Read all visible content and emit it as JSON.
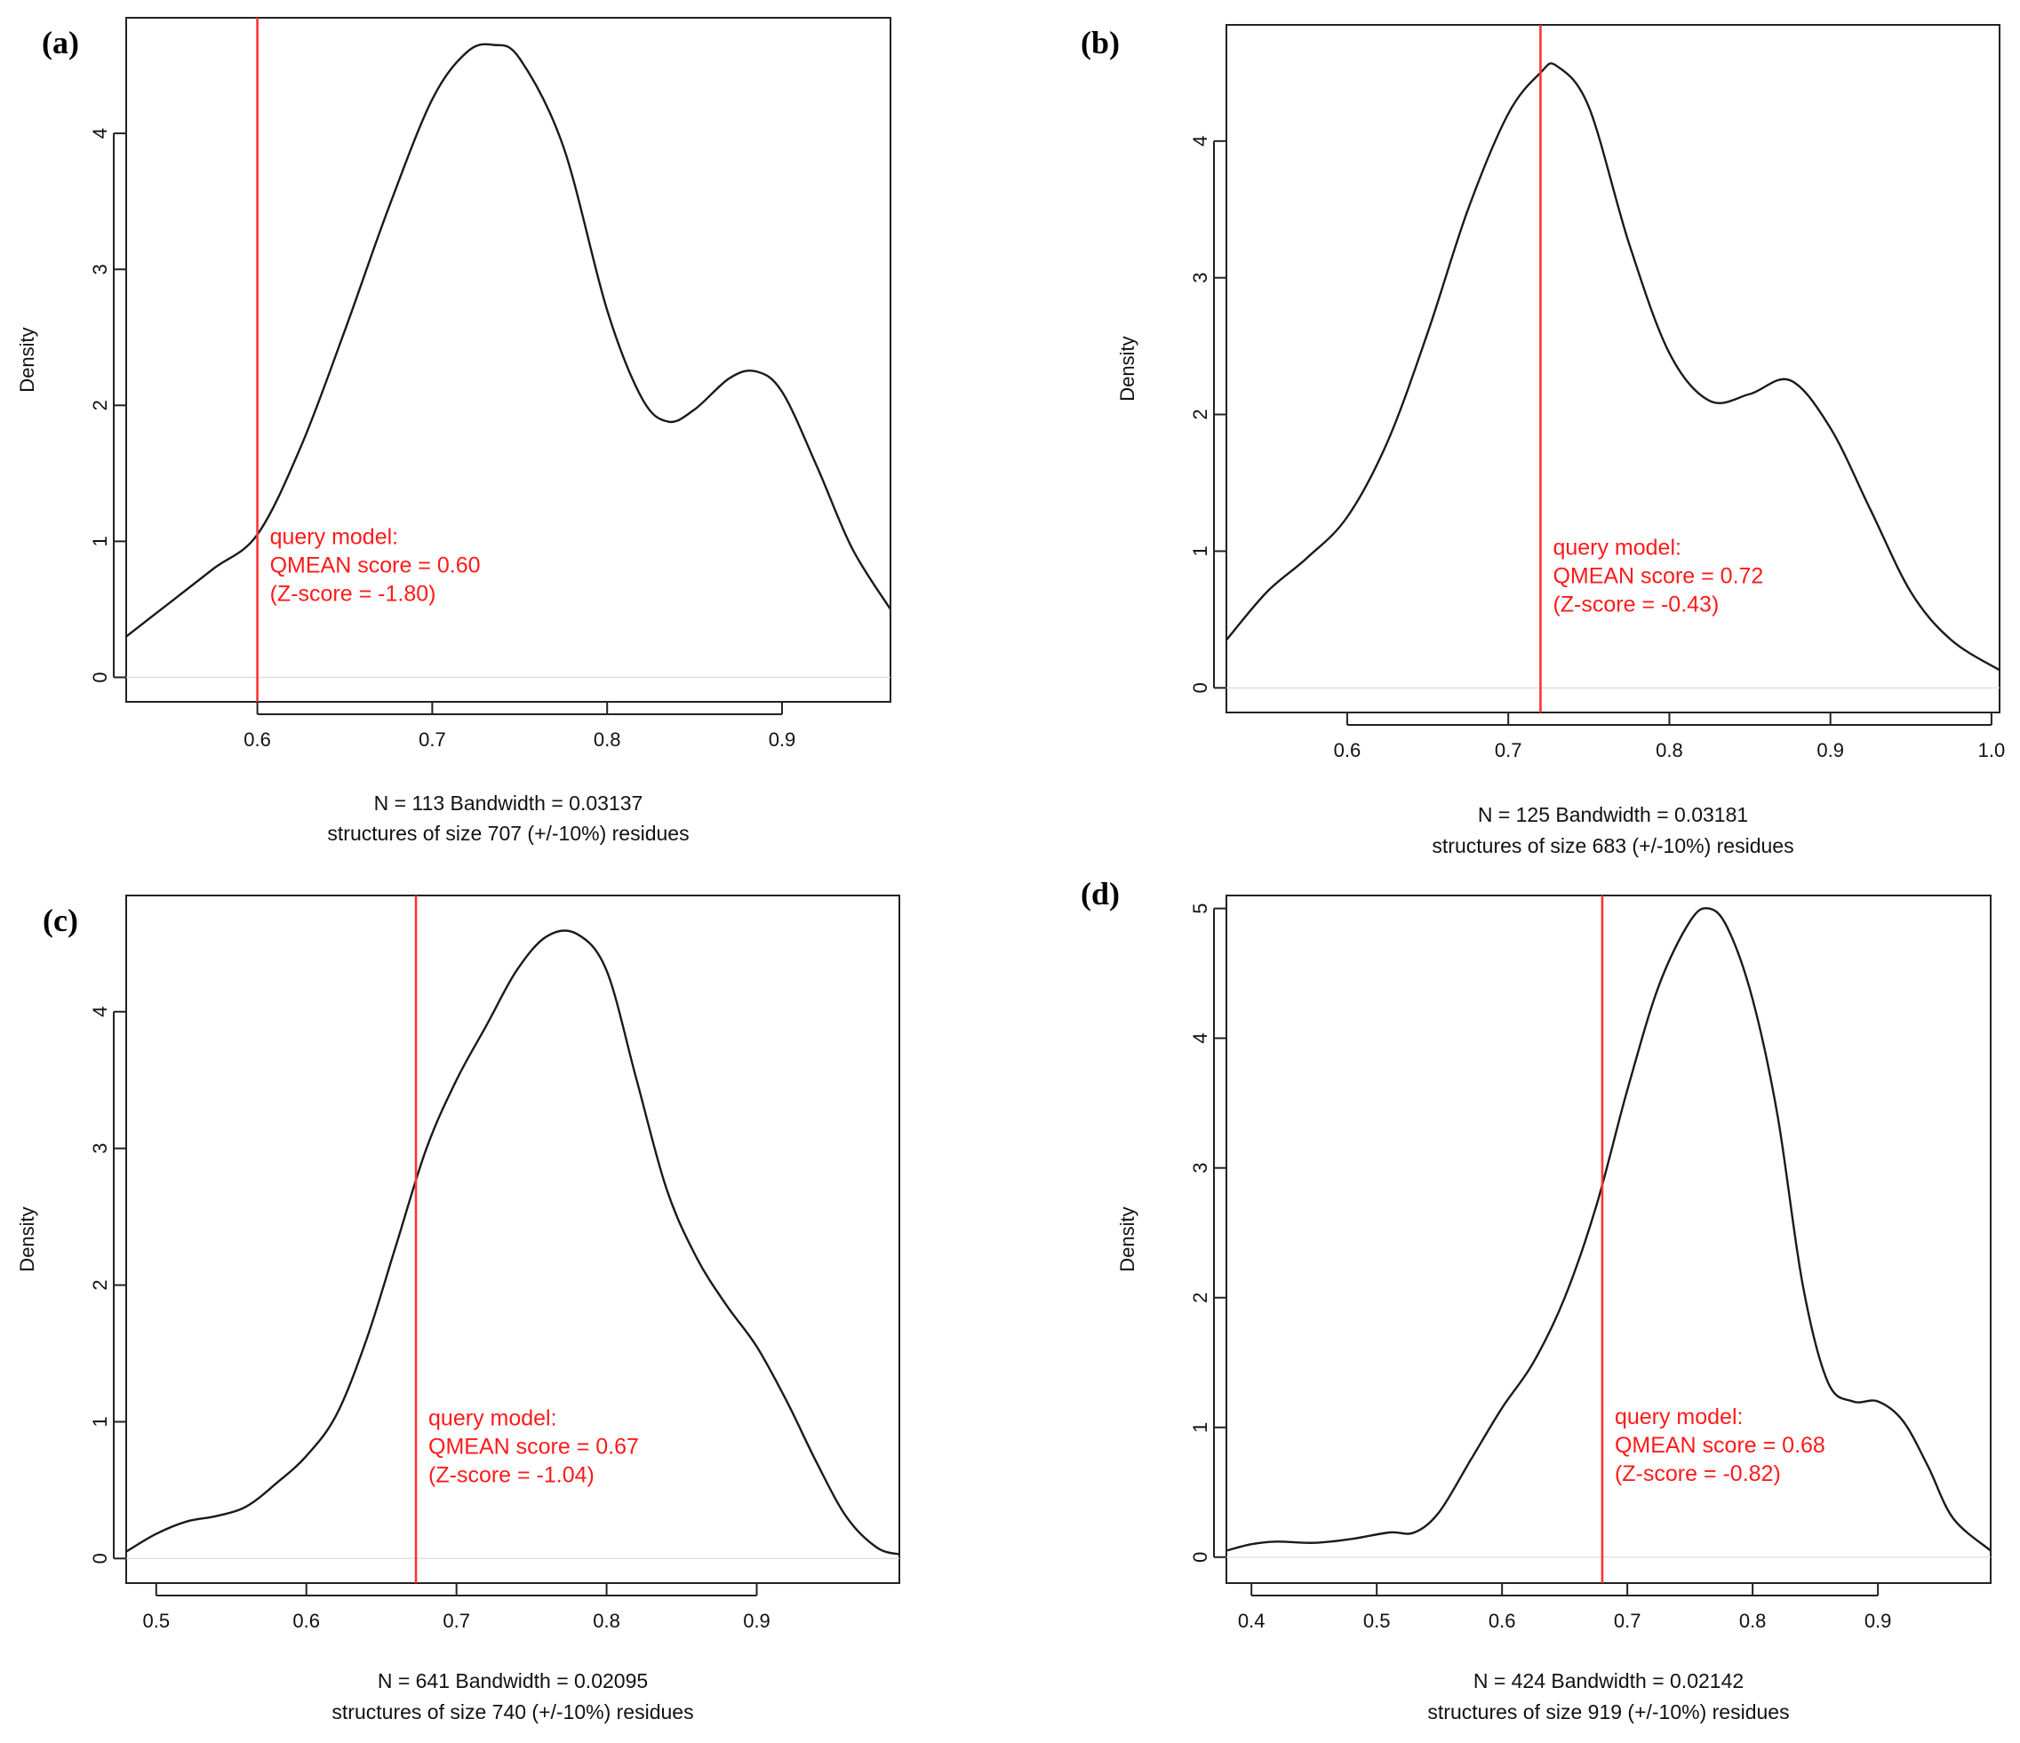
{
  "chart_data": [
    {
      "type": "line",
      "panel": "(a)",
      "ylabel": "Density",
      "xlim": [
        0.525,
        0.962
      ],
      "ylim": [
        -0.18,
        4.85
      ],
      "xticks": [
        "0.6",
        "0.7",
        "0.8",
        "0.9"
      ],
      "yticks": [
        "0",
        "1",
        "2",
        "3",
        "4"
      ],
      "sublabel_1": "N = 113   Bandwidth = 0.03137",
      "sublabel_2": "structures of size 707 (+/-10%) residues",
      "query_x": 0.6,
      "annotation": [
        "query model:",
        "QMEAN score = 0.60",
        "(Z-score = -1.80)"
      ],
      "series": [
        {
          "x": [
            0.525,
            0.55,
            0.575,
            0.6,
            0.625,
            0.65,
            0.675,
            0.7,
            0.72,
            0.735,
            0.75,
            0.775,
            0.8,
            0.82,
            0.835,
            0.85,
            0.87,
            0.885,
            0.9,
            0.92,
            0.94,
            0.962
          ],
          "y": [
            0.3,
            0.55,
            0.8,
            1.05,
            1.7,
            2.55,
            3.45,
            4.25,
            4.6,
            4.65,
            4.55,
            3.9,
            2.7,
            2.05,
            1.88,
            1.97,
            2.2,
            2.25,
            2.1,
            1.55,
            0.95,
            0.5
          ]
        }
      ]
    },
    {
      "type": "line",
      "panel": "(b)",
      "ylabel": "Density",
      "xlim": [
        0.525,
        1.005
      ],
      "ylim": [
        -0.18,
        4.85
      ],
      "xticks": [
        "0.6",
        "0.7",
        "0.8",
        "0.9",
        "1.0"
      ],
      "yticks": [
        "0",
        "1",
        "2",
        "3",
        "4"
      ],
      "sublabel_1": "N = 125   Bandwidth = 0.03181",
      "sublabel_2": "structures of size 683 (+/-10%) residues",
      "query_x": 0.72,
      "annotation": [
        "query model:",
        "QMEAN score = 0.72",
        "(Z-score = -0.43)"
      ],
      "series": [
        {
          "x": [
            0.525,
            0.55,
            0.575,
            0.6,
            0.625,
            0.65,
            0.675,
            0.7,
            0.72,
            0.73,
            0.75,
            0.775,
            0.8,
            0.825,
            0.85,
            0.875,
            0.9,
            0.925,
            0.95,
            0.975,
            1.005
          ],
          "y": [
            0.35,
            0.7,
            0.95,
            1.25,
            1.8,
            2.6,
            3.5,
            4.2,
            4.5,
            4.55,
            4.25,
            3.25,
            2.45,
            2.1,
            2.15,
            2.25,
            1.9,
            1.3,
            0.7,
            0.35,
            0.13
          ]
        }
      ]
    },
    {
      "type": "line",
      "panel": "(c)",
      "ylabel": "Density",
      "xlim": [
        0.48,
        0.995
      ],
      "ylim": [
        -0.18,
        4.85
      ],
      "xticks": [
        "0.5",
        "0.6",
        "0.7",
        "0.8",
        "0.9"
      ],
      "yticks": [
        "0",
        "1",
        "2",
        "3",
        "4"
      ],
      "sublabel_1": "N = 641   Bandwidth = 0.02095",
      "sublabel_2": "structures of size 740 (+/-10%) residues",
      "query_x": 0.673,
      "annotation": [
        "query model:",
        "QMEAN score = 0.67",
        "(Z-score = -1.04)"
      ],
      "series": [
        {
          "x": [
            0.48,
            0.5,
            0.52,
            0.54,
            0.56,
            0.58,
            0.6,
            0.62,
            0.64,
            0.66,
            0.68,
            0.7,
            0.72,
            0.74,
            0.76,
            0.78,
            0.8,
            0.82,
            0.84,
            0.86,
            0.88,
            0.9,
            0.92,
            0.94,
            0.96,
            0.98,
            0.995
          ],
          "y": [
            0.05,
            0.18,
            0.27,
            0.31,
            0.38,
            0.55,
            0.75,
            1.05,
            1.6,
            2.3,
            3.0,
            3.5,
            3.9,
            4.3,
            4.55,
            4.57,
            4.3,
            3.5,
            2.7,
            2.2,
            1.85,
            1.55,
            1.15,
            0.7,
            0.3,
            0.08,
            0.03
          ]
        }
      ]
    },
    {
      "type": "line",
      "panel": "(d)",
      "ylabel": "Density",
      "xlim": [
        0.38,
        0.99
      ],
      "ylim": [
        -0.2,
        5.1
      ],
      "xticks": [
        "0.4",
        "0.5",
        "0.6",
        "0.7",
        "0.8",
        "0.9"
      ],
      "yticks": [
        "0",
        "1",
        "2",
        "3",
        "4",
        "5"
      ],
      "sublabel_1": "N = 424   Bandwidth = 0.02142",
      "sublabel_2": "structures of size 919 (+/-10%) residues",
      "query_x": 0.68,
      "annotation": [
        "query model:",
        "QMEAN score = 0.68",
        "(Z-score = -0.82)"
      ],
      "series": [
        {
          "x": [
            0.38,
            0.4,
            0.42,
            0.45,
            0.48,
            0.51,
            0.53,
            0.55,
            0.575,
            0.6,
            0.625,
            0.65,
            0.675,
            0.7,
            0.725,
            0.75,
            0.765,
            0.78,
            0.8,
            0.82,
            0.84,
            0.86,
            0.88,
            0.9,
            0.92,
            0.94,
            0.96,
            0.99
          ],
          "y": [
            0.05,
            0.1,
            0.12,
            0.11,
            0.14,
            0.19,
            0.19,
            0.35,
            0.75,
            1.15,
            1.5,
            2.0,
            2.7,
            3.6,
            4.4,
            4.9,
            5.0,
            4.85,
            4.3,
            3.4,
            2.1,
            1.35,
            1.2,
            1.2,
            1.05,
            0.7,
            0.3,
            0.05
          ]
        }
      ]
    }
  ]
}
